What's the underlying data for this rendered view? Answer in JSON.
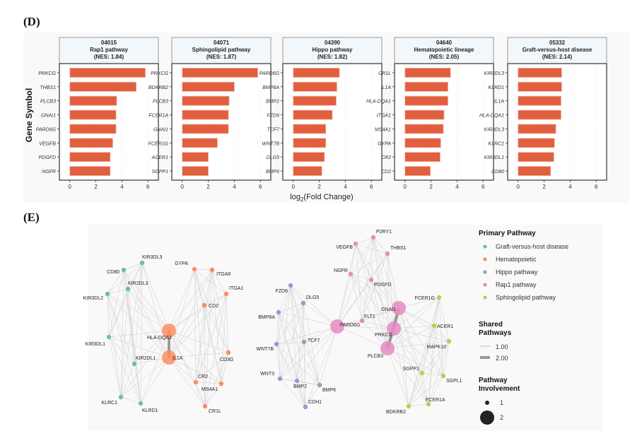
{
  "panel_labels": {
    "d": "(D)",
    "e": "(E)"
  },
  "chart_data": [
    {
      "type": "bar",
      "orientation": "horizontal",
      "panel": "D",
      "ylabel": "Gene Symbol",
      "xlabel": "log2(Fold Change)",
      "xlabel_parts": {
        "pre": "log",
        "sub": "2",
        "post": "(Fold Change)"
      },
      "xlim": [
        -0.8,
        6.8
      ],
      "xticks": [
        0,
        2,
        4,
        6
      ],
      "grid": "vertical dotted",
      "bar_color": "#e05f3e",
      "facets": [
        {
          "id": "04015",
          "name": "Rap1 pathway",
          "nes": "(NES: 1.84)",
          "categories": [
            "PRKCG",
            "THBS1",
            "PLCB3",
            "GNAI1",
            "PARD6G",
            "VEGFB",
            "PDGFD",
            "NGFR"
          ],
          "values": [
            5.8,
            5.1,
            3.6,
            3.55,
            3.55,
            3.3,
            3.1,
            3.1
          ]
        },
        {
          "id": "04071",
          "name": "Sphingolipid pathway",
          "nes": "(NES: 1.87)",
          "categories": [
            "PRKCG",
            "BDKRB2",
            "PLCB3",
            "FCER1A",
            "GNAI1",
            "FCER1G",
            "ACER1",
            "SGPP1"
          ],
          "values": [
            5.8,
            4.0,
            3.6,
            3.55,
            3.55,
            2.7,
            2.0,
            2.0
          ]
        },
        {
          "id": "04390",
          "name": "Hippo pathway",
          "nes": "(NES: 1.82)",
          "categories": [
            "PARD6G",
            "BMP8A",
            "BMP2",
            "FZD6",
            "TCF7",
            "WNT7B",
            "DLG5",
            "BMP6"
          ],
          "values": [
            3.55,
            3.35,
            3.3,
            3.0,
            2.5,
            2.5,
            2.4,
            2.2
          ]
        },
        {
          "id": "04640",
          "name": "Hematopoietic lineage",
          "nes": "(NES: 2.05)",
          "categories": [
            "CR1L",
            "IL1A",
            "HLA-DQA1",
            "ITGA1",
            "MS4A1",
            "GYPA",
            "CR2",
            "CD2"
          ],
          "values": [
            3.5,
            3.3,
            3.3,
            3.0,
            2.95,
            2.75,
            2.7,
            1.95
          ]
        },
        {
          "id": "05332",
          "name": "Graft-versus-host disease",
          "nes": "(NES: 2.14)",
          "categories": [
            "KIR2DL3",
            "KLRD1",
            "IL1A",
            "HLA-DQA1",
            "KIR3DL3",
            "KLRC1",
            "KIR3DL1",
            "CD80"
          ],
          "values": [
            3.35,
            3.35,
            3.3,
            3.3,
            2.9,
            2.8,
            2.75,
            2.5
          ]
        }
      ]
    },
    {
      "type": "network",
      "panel": "E",
      "legend": {
        "primary_title": "Primary Pathway",
        "pathways": [
          {
            "name": "Graft-versus-host disease",
            "color": "#66c2a5"
          },
          {
            "name": "Hematopoietic",
            "color": "#fc8d62"
          },
          {
            "name": "Hippo pathway",
            "color": "#8da0cb"
          },
          {
            "name": "Rap1 pathway",
            "color": "#e78ac3"
          },
          {
            "name": "Sphingolipid pathway",
            "color": "#a6d854"
          }
        ],
        "shared_title_lines": [
          "Shared",
          "Pathways"
        ],
        "shared_values": [
          "1.00",
          "2.00"
        ],
        "involvement_title_lines": [
          "Pathway",
          "Involvement"
        ],
        "involvement_values": [
          "1",
          "2"
        ]
      },
      "nodes": [
        {
          "id": "CD80",
          "pathway": 0,
          "involvement": 1
        },
        {
          "id": "KIR3DL3",
          "pathway": 0,
          "involvement": 1
        },
        {
          "id": "KIR2DL3",
          "pathway": 0,
          "involvement": 1
        },
        {
          "id": "KIR3DL2",
          "pathway": 0,
          "involvement": 1
        },
        {
          "id": "KIR2DL1",
          "pathway": 0,
          "involvement": 1
        },
        {
          "id": "KIR3DL1",
          "pathway": 0,
          "involvement": 1
        },
        {
          "id": "KLRC1",
          "pathway": 0,
          "involvement": 1
        },
        {
          "id": "KLRD1",
          "pathway": 0,
          "involvement": 1
        },
        {
          "id": "HLA-DQA1",
          "pathway": 1,
          "involvement": 2
        },
        {
          "id": "IL1A",
          "pathway": 1,
          "involvement": 2
        },
        {
          "id": "GYPA",
          "pathway": 1,
          "involvement": 1
        },
        {
          "id": "ITGA6",
          "pathway": 1,
          "involvement": 1
        },
        {
          "id": "ITGA1",
          "pathway": 1,
          "involvement": 1
        },
        {
          "id": "CD2",
          "pathway": 1,
          "involvement": 1
        },
        {
          "id": "CD3G",
          "pathway": 1,
          "involvement": 1
        },
        {
          "id": "CR2",
          "pathway": 1,
          "involvement": 1
        },
        {
          "id": "MS4A1",
          "pathway": 1,
          "involvement": 1
        },
        {
          "id": "CR1L",
          "pathway": 1,
          "involvement": 1
        },
        {
          "id": "FZD6",
          "pathway": 2,
          "involvement": 1
        },
        {
          "id": "DLG5",
          "pathway": 2,
          "involvement": 1
        },
        {
          "id": "BMP8A",
          "pathway": 2,
          "involvement": 1
        },
        {
          "id": "TCF7",
          "pathway": 2,
          "involvement": 1
        },
        {
          "id": "WNT7B",
          "pathway": 2,
          "involvement": 1
        },
        {
          "id": "WNT3",
          "pathway": 2,
          "involvement": 1
        },
        {
          "id": "BMP2",
          "pathway": 2,
          "involvement": 1
        },
        {
          "id": "BMP6",
          "pathway": 2,
          "involvement": 1
        },
        {
          "id": "CDH1",
          "pathway": 2,
          "involvement": 1
        },
        {
          "id": "PARD6G",
          "pathway": 3,
          "involvement": 2
        },
        {
          "id": "P2RY1",
          "pathway": 3,
          "involvement": 1
        },
        {
          "id": "VEGFB",
          "pathway": 3,
          "involvement": 1
        },
        {
          "id": "THBS1",
          "pathway": 3,
          "involvement": 1
        },
        {
          "id": "NGFR",
          "pathway": 3,
          "involvement": 1
        },
        {
          "id": "PDGFD",
          "pathway": 3,
          "involvement": 1
        },
        {
          "id": "FLT1",
          "pathway": 3,
          "involvement": 1
        },
        {
          "id": "GNAI1",
          "pathway": 3,
          "involvement": 2
        },
        {
          "id": "PRKCG",
          "pathway": 3,
          "involvement": 2
        },
        {
          "id": "PLCB3",
          "pathway": 3,
          "involvement": 2
        },
        {
          "id": "FCER1G",
          "pathway": 4,
          "involvement": 1
        },
        {
          "id": "ACER1",
          "pathway": 4,
          "involvement": 1
        },
        {
          "id": "MAPK10",
          "pathway": 4,
          "involvement": 1
        },
        {
          "id": "SGPP1",
          "pathway": 4,
          "involvement": 1
        },
        {
          "id": "SGPL1",
          "pathway": 4,
          "involvement": 1
        },
        {
          "id": "FCER1A",
          "pathway": 4,
          "involvement": 1
        },
        {
          "id": "BDKRB2",
          "pathway": 4,
          "involvement": 1
        }
      ],
      "strong_edges": [
        [
          "HLA-DQA1",
          "IL1A"
        ],
        [
          "GNAI1",
          "PRKCG"
        ],
        [
          "PRKCG",
          "PLCB3"
        ],
        [
          "GNAI1",
          "PLCB3"
        ]
      ],
      "edge_groups": [
        [
          "CD80",
          "KIR3DL3",
          "KIR2DL3",
          "KIR3DL2",
          "KIR2DL1",
          "KIR3DL1",
          "KLRC1",
          "KLRD1",
          "HLA-DQA1",
          "IL1A"
        ],
        [
          "HLA-DQA1",
          "IL1A",
          "GYPA",
          "ITGA6",
          "ITGA1",
          "CD2",
          "CD3G",
          "CR2",
          "MS4A1",
          "CR1L"
        ],
        [
          "FZD6",
          "DLG5",
          "BMP8A",
          "TCF7",
          "WNT7B",
          "WNT3",
          "BMP2",
          "BMP6",
          "CDH1",
          "PARD6G"
        ],
        [
          "PARD6G",
          "P2RY1",
          "VEGFB",
          "THBS1",
          "NGFR",
          "PDGFD",
          "FLT1",
          "GNAI1",
          "PRKCG",
          "PLCB3"
        ],
        [
          "GNAI1",
          "PRKCG",
          "PLCB3",
          "FCER1G",
          "ACER1",
          "MAPK10",
          "SGPP1",
          "SGPL1",
          "FCER1A",
          "BDKRB2"
        ]
      ]
    }
  ]
}
